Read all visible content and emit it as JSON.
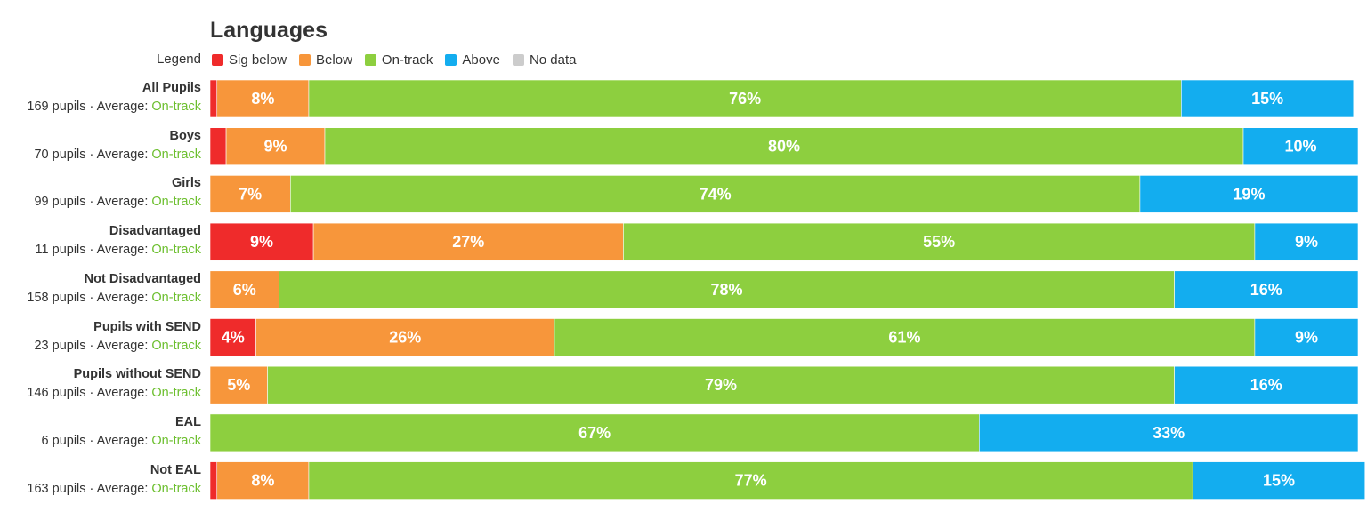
{
  "chart_data": {
    "type": "bar",
    "stacked": true,
    "orientation": "horizontal",
    "title": "Languages",
    "legend": {
      "label": "Legend",
      "position": "top-left",
      "items": [
        {
          "name": "Sig below",
          "color": "#ef2b2b"
        },
        {
          "name": "Below",
          "color": "#f7963b"
        },
        {
          "name": "On-track",
          "color": "#8dcf3f"
        },
        {
          "name": "Above",
          "color": "#13adef"
        },
        {
          "name": "No data",
          "color": "#cccccc"
        }
      ]
    },
    "xlim": [
      0,
      100
    ],
    "grid": false,
    "rows": [
      {
        "name": "All Pupils",
        "pupils": "169 pupils",
        "average_prefix": "Average:",
        "average": "On-track",
        "values": [
          0.6,
          8,
          76,
          15
        ],
        "labels": [
          "",
          "8%",
          "76%",
          "15%"
        ]
      },
      {
        "name": "Boys",
        "pupils": "70 pupils",
        "average_prefix": "Average:",
        "average": "On-track",
        "values": [
          1.4,
          8.6,
          80,
          10
        ],
        "labels": [
          "",
          "9%",
          "80%",
          "10%"
        ]
      },
      {
        "name": "Girls",
        "pupils": "99 pupils",
        "average_prefix": "Average:",
        "average": "On-track",
        "values": [
          0,
          7,
          74,
          19
        ],
        "labels": [
          "",
          "7%",
          "74%",
          "19%"
        ]
      },
      {
        "name": "Disadvantaged",
        "pupils": "11 pupils",
        "average_prefix": "Average:",
        "average": "On-track",
        "values": [
          9,
          27,
          55,
          9
        ],
        "labels": [
          "9%",
          "27%",
          "55%",
          "9%"
        ]
      },
      {
        "name": "Not Disadvantaged",
        "pupils": "158 pupils",
        "average_prefix": "Average:",
        "average": "On-track",
        "values": [
          0,
          6,
          78,
          16
        ],
        "labels": [
          "",
          "6%",
          "78%",
          "16%"
        ]
      },
      {
        "name": "Pupils with SEND",
        "pupils": "23 pupils",
        "average_prefix": "Average:",
        "average": "On-track",
        "values": [
          4,
          26,
          61,
          9
        ],
        "labels": [
          "4%",
          "26%",
          "61%",
          "9%"
        ]
      },
      {
        "name": "Pupils without SEND",
        "pupils": "146 pupils",
        "average_prefix": "Average:",
        "average": "On-track",
        "values": [
          0,
          5,
          79,
          16
        ],
        "labels": [
          "",
          "5%",
          "79%",
          "16%"
        ]
      },
      {
        "name": "EAL",
        "pupils": "6 pupils",
        "average_prefix": "Average:",
        "average": "On-track",
        "values": [
          0,
          0,
          67,
          33
        ],
        "labels": [
          "",
          "",
          "67%",
          "33%"
        ]
      },
      {
        "name": "Not EAL",
        "pupils": "163 pupils",
        "average_prefix": "Average:",
        "average": "On-track",
        "values": [
          0.6,
          8,
          77,
          15
        ],
        "labels": [
          "",
          "8%",
          "77%",
          "15%"
        ]
      }
    ]
  }
}
